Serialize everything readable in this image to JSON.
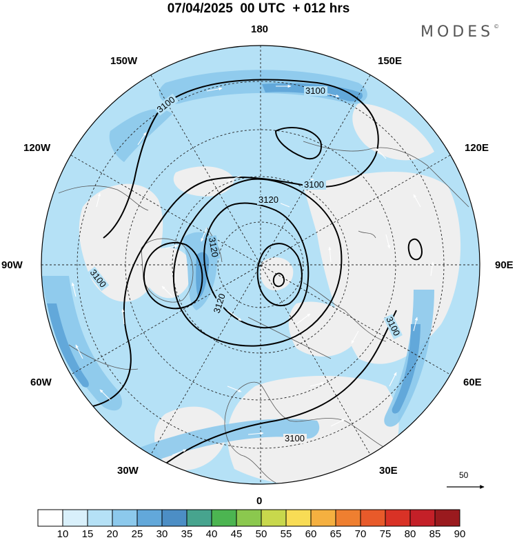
{
  "header": {
    "title": "07/04/2025  00 UTC  + 012 hrs",
    "logo": "MODES",
    "logo_mark": "©"
  },
  "map": {
    "projection": "north-polar-stereographic",
    "longitude_labels": {
      "top": "180",
      "bottom": "0",
      "left": "90W",
      "right": "90E",
      "upper_left_outer": "150W",
      "upper_left_inner": "120W",
      "upper_right_outer": "150E",
      "upper_right_inner": "120E",
      "lower_left_inner": "60W",
      "lower_left_outer": "30W",
      "lower_right_inner": "60E",
      "lower_right_outer": "30E"
    },
    "contour_labels": [
      "3100",
      "3100",
      "3100",
      "3100",
      "3100",
      "3100",
      "3120",
      "3120",
      "3120"
    ],
    "contour_color": "#000000",
    "wind_arrow_color": "#ffffff",
    "reference_vector_label": "50",
    "colors": {
      "land": "#efefef",
      "ocean_outline": "#555555"
    }
  },
  "colorbar": {
    "labels": [
      "10",
      "15",
      "20",
      "25",
      "30",
      "35",
      "40",
      "45",
      "50",
      "55",
      "60",
      "65",
      "70",
      "75",
      "80",
      "85",
      "90"
    ],
    "colors": [
      "#ffffff",
      "#d9f0fb",
      "#b5e1f6",
      "#8cc9ec",
      "#62a8da",
      "#4c8ec5",
      "#47a48e",
      "#4cb551",
      "#8bc84e",
      "#c8d84c",
      "#f8dc55",
      "#f5b040",
      "#ef7f30",
      "#e85a2a",
      "#d93226",
      "#c42028",
      "#9a1a1e"
    ]
  }
}
